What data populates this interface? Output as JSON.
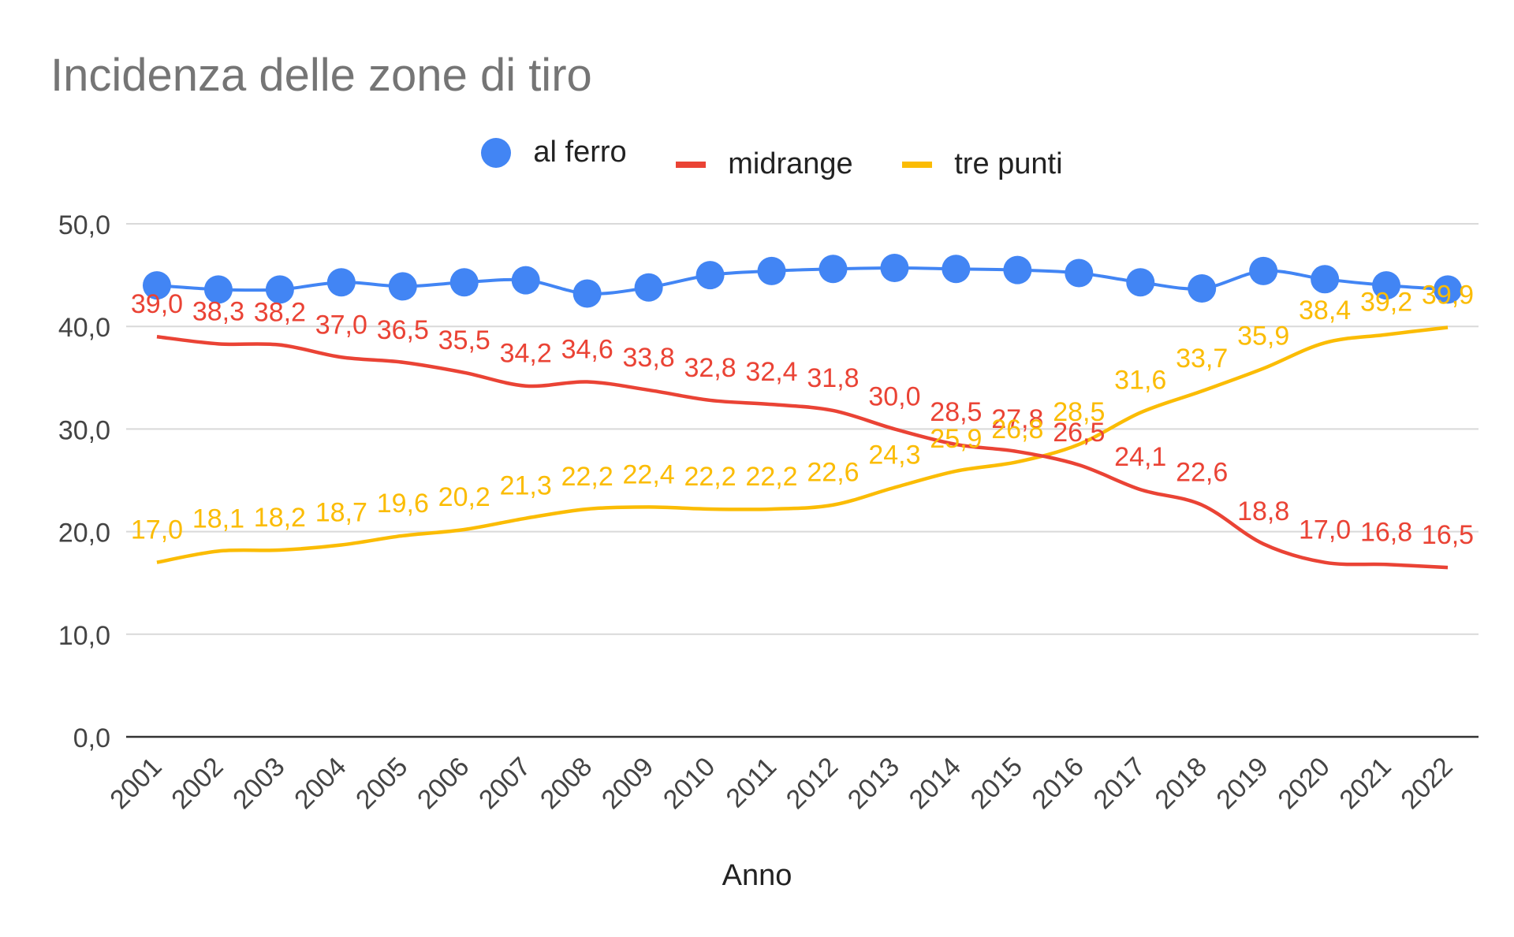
{
  "chart_data": {
    "type": "line",
    "title": "Incidenza delle zone di tiro",
    "xlabel": "Anno",
    "ylabel": "",
    "ylim": [
      0,
      50
    ],
    "y_ticks": [
      "0,0",
      "10,0",
      "20,0",
      "30,0",
      "40,0",
      "50,0"
    ],
    "categories": [
      "2001",
      "2002",
      "2003",
      "2004",
      "2005",
      "2006",
      "2007",
      "2008",
      "2009",
      "2010",
      "2011",
      "2012",
      "2013",
      "2014",
      "2015",
      "2016",
      "2017",
      "2018",
      "2019",
      "2020",
      "2021",
      "2022"
    ],
    "legend_position": "top",
    "grid": true,
    "series": [
      {
        "name": "al ferro",
        "color": "#4285f4",
        "marker": "circle",
        "values": [
          44.0,
          43.6,
          43.6,
          44.3,
          43.9,
          44.3,
          44.5,
          43.2,
          43.8,
          45.0,
          45.4,
          45.6,
          45.7,
          45.6,
          45.5,
          45.2,
          44.3,
          43.7,
          45.4,
          44.6,
          44.0,
          43.6
        ],
        "data_labels": []
      },
      {
        "name": "midrange",
        "color": "#ea4335",
        "marker": "none",
        "values": [
          39.0,
          38.3,
          38.2,
          37.0,
          36.5,
          35.5,
          34.2,
          34.6,
          33.8,
          32.8,
          32.4,
          31.8,
          30.0,
          28.5,
          27.8,
          26.5,
          24.1,
          22.6,
          18.8,
          17.0,
          16.8,
          16.5
        ],
        "data_labels": [
          "39,0",
          "38,3",
          "38,2",
          "37,0",
          "36,5",
          "35,5",
          "34,2",
          "34,6",
          "33,8",
          "32,8",
          "32,4",
          "31,8",
          "30,0",
          "28,5",
          "27,8",
          "26,5",
          "24,1",
          "22,6",
          "18,8",
          "17,0",
          "16,8",
          "16,5"
        ]
      },
      {
        "name": "tre punti",
        "color": "#fbbc04",
        "marker": "none",
        "values": [
          17.0,
          18.1,
          18.2,
          18.7,
          19.6,
          20.2,
          21.3,
          22.2,
          22.4,
          22.2,
          22.2,
          22.6,
          24.3,
          25.9,
          26.8,
          28.5,
          31.6,
          33.7,
          35.9,
          38.4,
          39.2,
          39.9
        ],
        "data_labels": [
          "17,0",
          "18,1",
          "18,2",
          "18,7",
          "19,6",
          "20,2",
          "21,3",
          "22,2",
          "22,4",
          "22,2",
          "22,2",
          "22,6",
          "24,3",
          "25,9",
          "26,8",
          "28,5",
          "31,6",
          "33,7",
          "35,9",
          "38,4",
          "39,2",
          "39,9"
        ]
      }
    ]
  }
}
